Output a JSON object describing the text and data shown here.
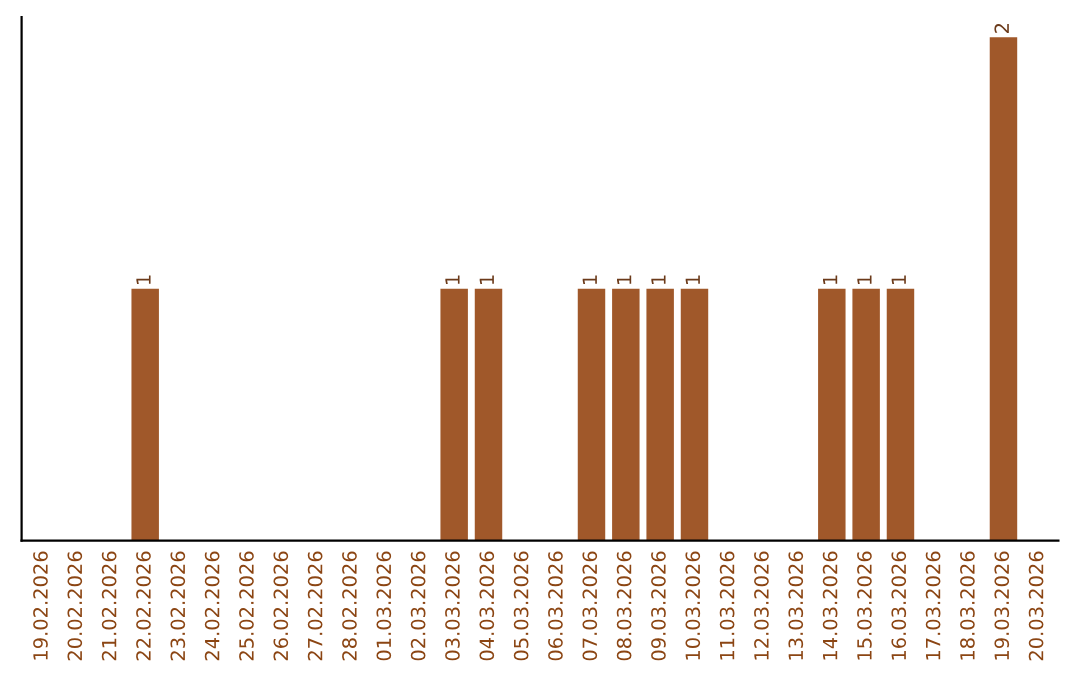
{
  "chart_data": {
    "type": "bar",
    "categories": [
      "19.02.2026",
      "20.02.2026",
      "21.02.2026",
      "22.02.2026",
      "23.02.2026",
      "24.02.2026",
      "25.02.2026",
      "26.02.2026",
      "27.02.2026",
      "28.02.2026",
      "01.03.2026",
      "02.03.2026",
      "03.03.2026",
      "04.03.2026",
      "05.03.2026",
      "06.03.2026",
      "07.03.2026",
      "08.03.2026",
      "09.03.2026",
      "10.03.2026",
      "11.03.2026",
      "12.03.2026",
      "13.03.2026",
      "14.03.2026",
      "15.03.2026",
      "16.03.2026",
      "17.03.2026",
      "18.03.2026",
      "19.03.2026",
      "20.03.2026"
    ],
    "values": [
      0,
      0,
      0,
      1,
      0,
      0,
      0,
      0,
      0,
      0,
      0,
      0,
      1,
      1,
      0,
      0,
      1,
      1,
      1,
      1,
      0,
      0,
      0,
      1,
      1,
      1,
      0,
      0,
      2,
      0
    ],
    "value_labels": [
      null,
      null,
      null,
      "1",
      null,
      null,
      null,
      null,
      null,
      null,
      null,
      null,
      "1",
      "1",
      null,
      null,
      "1",
      "1",
      "1",
      "1",
      null,
      null,
      null,
      "1",
      "1",
      "1",
      null,
      null,
      "2",
      null
    ],
    "color": "#a0582a",
    "tick_labels": "x",
    "grid": false,
    "legend": false
  }
}
